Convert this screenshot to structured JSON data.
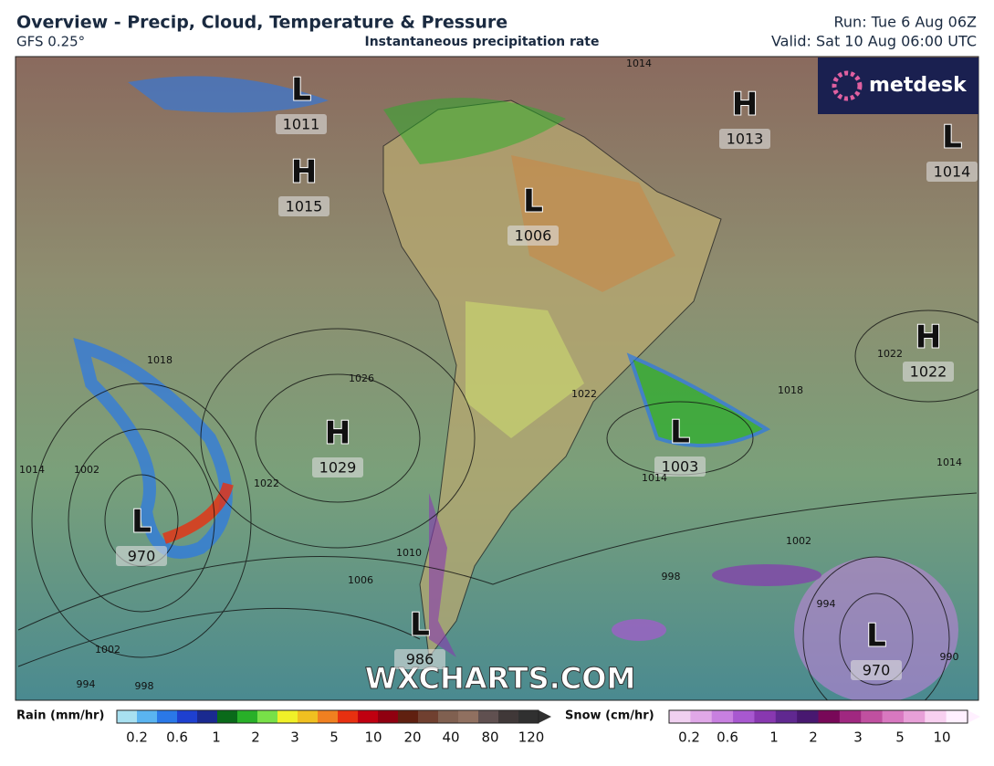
{
  "header": {
    "title": "Overview - Precip, Cloud, Temperature & Pressure",
    "model": "GFS 0.25°",
    "subtitle": "Instantaneous precipitation rate",
    "run": "Run: Tue 6 Aug 06Z",
    "valid": "Valid: Sat 10 Aug 06:00 UTC"
  },
  "logo": "metdesk",
  "watermark": "WXCHARTS.COM",
  "pressure_systems": [
    {
      "type": "L",
      "value": "1011"
    },
    {
      "type": "H",
      "value": "1015"
    },
    {
      "type": "L",
      "value": "1006"
    },
    {
      "type": "H",
      "value": "1013"
    },
    {
      "type": "L",
      "value": "1014"
    },
    {
      "type": "H",
      "value": "1022"
    },
    {
      "type": "H",
      "value": "1029"
    },
    {
      "type": "L",
      "value": "1003"
    },
    {
      "type": "L",
      "value": "970"
    },
    {
      "type": "L",
      "value": "986"
    },
    {
      "type": "L",
      "value": "970"
    }
  ],
  "contour_labels": [
    "1014",
    "1018",
    "1026",
    "1022",
    "1022",
    "1018",
    "1014",
    "1014",
    "1022",
    "1010",
    "1006",
    "1002",
    "998",
    "994",
    "1002",
    "998",
    "994",
    "990",
    "1014",
    "1002"
  ],
  "legend": {
    "rain": {
      "label": "Rain (mm/hr)",
      "ticks": [
        "0.2",
        "0.6",
        "1",
        "2",
        "3",
        "5",
        "10",
        "20",
        "40",
        "80",
        "120"
      ],
      "colors": [
        "#a8e0f0",
        "#5ab4f0",
        "#2a78e8",
        "#1e40d0",
        "#1a2a90",
        "#0a6a1a",
        "#28b028",
        "#78e048",
        "#f0f028",
        "#f0c020",
        "#f08020",
        "#e83010",
        "#c00010",
        "#900010",
        "#602010",
        "#704030",
        "#806050",
        "#907060",
        "#605050",
        "#403838",
        "#303030"
      ]
    },
    "snow": {
      "label": "Snow (cm/hr)",
      "ticks": [
        "0.2",
        "0.6",
        "1",
        "2",
        "3",
        "5",
        "10"
      ],
      "colors": [
        "#f0d0f0",
        "#e0a8e8",
        "#c880e0",
        "#a858d0",
        "#8838b0",
        "#602890",
        "#481870",
        "#780858",
        "#a02880",
        "#c050a0",
        "#d878c0",
        "#e8a0d8",
        "#f8d0f0",
        "#fff0ff"
      ]
    }
  }
}
